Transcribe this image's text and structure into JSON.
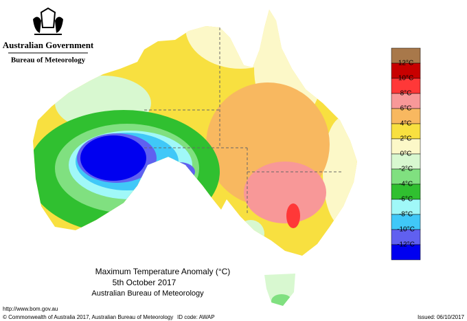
{
  "header": {
    "government": "Australian Government",
    "bureau": "Bureau of Meteorology"
  },
  "caption": {
    "title": "Maximum Temperature Anomaly (°C)",
    "date": "5th October 2017",
    "source": "Australian Bureau of Meteorology"
  },
  "legend": {
    "colors": [
      "#a8784a",
      "#c80000",
      "#ff3838",
      "#f89898",
      "#f8b860",
      "#f8e040",
      "#fcf8c8",
      "#d8f8d0",
      "#80e080",
      "#30c030",
      "#a0f8f8",
      "#40c8f8",
      "#6060f0",
      "#0000f0"
    ],
    "labels": [
      "12°C",
      "10°C",
      "8°C",
      "6°C",
      "4°C",
      "2°C",
      "0°C",
      "-2°C",
      "-4°C",
      "-6°C",
      "-8°C",
      "-10°C",
      "-12°C"
    ]
  },
  "footer": {
    "url": "http://www.bom.gov.au",
    "copyright": "© Commonwealth of Australia 2017, Australian Bureau of Meteorology",
    "id_code": "ID code: AWAP",
    "issued": "Issued: 06/10/2017"
  }
}
